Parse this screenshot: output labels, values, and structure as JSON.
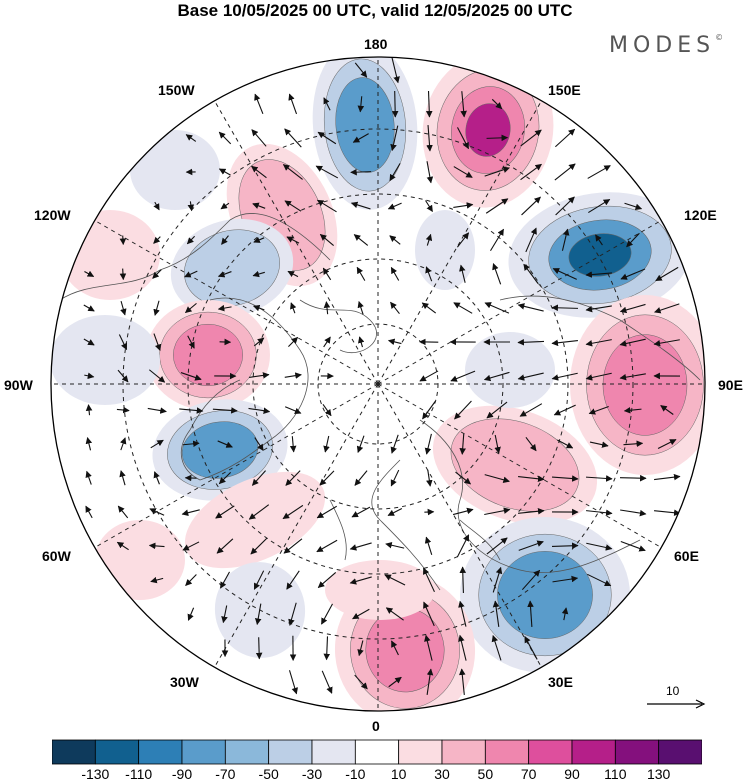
{
  "title": "Base 10/05/2025 00 UTC, valid 12/05/2025 00 UTC",
  "brand": "MODES",
  "brand_mark": "©",
  "longitude_labels": {
    "lon_180": "180",
    "lon_150e": "150E",
    "lon_120e": "120E",
    "lon_90e": "90E",
    "lon_60e": "60E",
    "lon_30e": "30E",
    "lon_0": "0",
    "lon_30w": "30W",
    "lon_60w": "60W",
    "lon_90w": "90W",
    "lon_120w": "120W",
    "lon_150w": "150W"
  },
  "reference_vector": {
    "label": "10"
  },
  "colorbar": {
    "levels": [
      "-130",
      "-110",
      "-90",
      "-70",
      "-50",
      "-30",
      "-10",
      "10",
      "30",
      "50",
      "70",
      "90",
      "110",
      "130"
    ],
    "colors": [
      "#0e3a5c",
      "#11608f",
      "#2d7fb6",
      "#5a9ccb",
      "#8bb8da",
      "#bccfe6",
      "#e4e6f1",
      "#ffffff",
      "#fbdde2",
      "#f6b5c6",
      "#ef86ae",
      "#de4f9d",
      "#b51f89",
      "#84107d",
      "#590f70"
    ]
  },
  "map": {
    "projection": "north-polar-stereographic",
    "anomaly_colors": {
      "neg_strong": "#11608f",
      "neg_mid": "#5a9ccb",
      "neg_weak": "#bccfe6",
      "neg_faint": "#e4e6f1",
      "pos_faint": "#fbdde2",
      "pos_weak": "#f6b5c6",
      "pos_mid": "#ef86ae",
      "pos_strong": "#b51f89"
    }
  }
}
